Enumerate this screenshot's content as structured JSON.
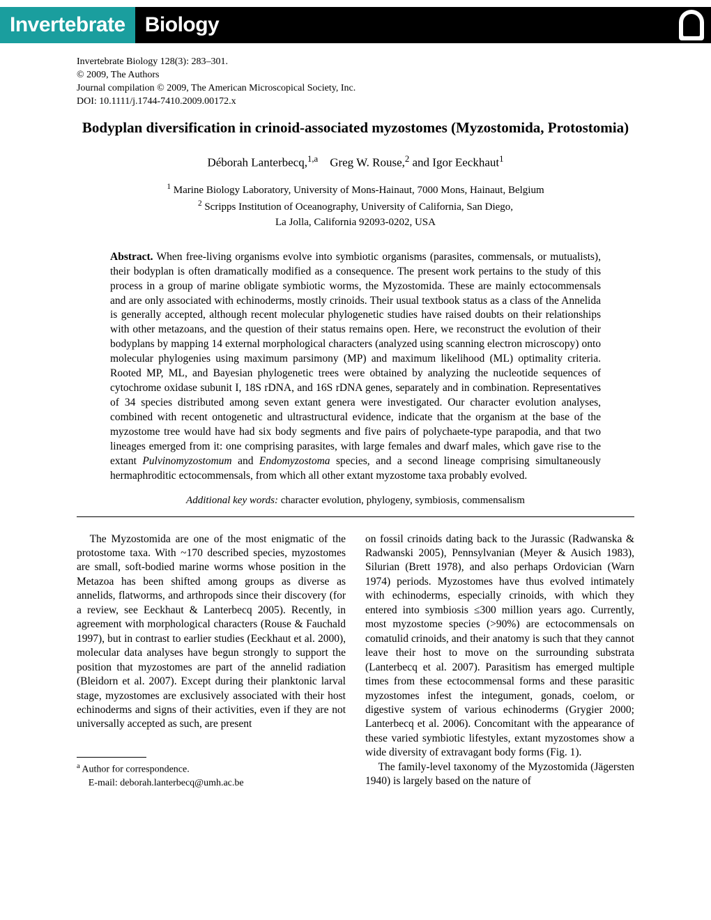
{
  "banner": {
    "word1": "Invertebrate",
    "word2": "Biology",
    "colors": {
      "teal": "#1a9e9e",
      "black": "#000000",
      "white": "#ffffff"
    }
  },
  "citation": {
    "line1": "Invertebrate Biology 128(3): 283–301.",
    "line2": "© 2009, The Authors",
    "line3": "Journal compilation © 2009, The American Microscopical Society, Inc.",
    "line4": "DOI: 10.1111/j.1744-7410.2009.00172.x"
  },
  "title": "Bodyplan diversification in crinoid-associated myzostomes (Myzostomida, Protostomia)",
  "authors_html": "Déborah Lanterbecq,<sup>1,a</sup> Greg W. Rouse,<sup>2</sup> and Igor Eeckhaut<sup>1</sup>",
  "affiliations": {
    "a1": "Marine Biology Laboratory, University of Mons-Hainaut, 7000 Mons, Hainaut, Belgium",
    "a2": "Scripps Institution of Oceanography, University of California, San Diego,",
    "a2b": "La Jolla, California 92093-0202, USA"
  },
  "abstract": {
    "label": "Abstract.",
    "text": "When free-living organisms evolve into symbiotic organisms (parasites, commensals, or mutualists), their bodyplan is often dramatically modified as a consequence. The present work pertains to the study of this process in a group of marine obligate symbiotic worms, the Myzostomida. These are mainly ectocommensals and are only associated with echinoderms, mostly crinoids. Their usual textbook status as a class of the Annelida is generally accepted, although recent molecular phylogenetic studies have raised doubts on their relationships with other metazoans, and the question of their status remains open. Here, we reconstruct the evolution of their bodyplans by mapping 14 external morphological characters (analyzed using scanning electron microscopy) onto molecular phylogenies using maximum parsimony (MP) and maximum likelihood (ML) optimality criteria. Rooted MP, ML, and Bayesian phylogenetic trees were obtained by analyzing the nucleotide sequences of cytochrome oxidase subunit I, 18S rDNA, and 16S rDNA genes, separately and in combination. Representatives of 34 species distributed among seven extant genera were investigated. Our character evolution analyses, combined with recent ontogenetic and ultrastructural evidence, indicate that the organism at the base of the myzostome tree would have had six body segments and five pairs of polychaete-type parapodia, and that two lineages emerged from it: one comprising parasites, with large females and dwarf males, which gave rise to the extant "
  },
  "abstract_italic1": "Pulvinomyzostomum",
  "abstract_mid": " and ",
  "abstract_italic2": "Endomyzostoma",
  "abstract_tail": " species, and a second lineage comprising simultaneously hermaphroditic ectocommensals, from which all other extant myzostome taxa probably evolved.",
  "keywords": {
    "label": "Additional key words:",
    "text": " character evolution, phylogeny, symbiosis, commensalism"
  },
  "body": {
    "col1_p1": "The Myzostomida are one of the most enigmatic of the protostome taxa. With ~170 described species, myzostomes are small, soft-bodied marine worms whose position in the Metazoa has been shifted among groups as diverse as annelids, flatworms, and arthropods since their discovery (for a review, see Eeckhaut & Lanterbecq 2005). Recently, in agreement with morphological characters (Rouse & Fauchald 1997), but in contrast to earlier studies (Eeckhaut et al. 2000), molecular data analyses have begun strongly to support the position that myzostomes are part of the annelid radiation (Bleidorn et al. 2007). Except during their planktonic larval stage, myzostomes are exclusively associated with their host echinoderms and signs of their activities, even if they are not universally accepted as such, are present",
    "col2_p1": "on fossil crinoids dating back to the Jurassic (Radwanska & Radwanski 2005), Pennsylvanian (Meyer & Ausich 1983), Silurian (Brett 1978), and also perhaps Ordovician (Warn 1974) periods. Myzostomes have thus evolved intimately with echinoderms, especially crinoids, with which they entered into symbiosis ≤300 million years ago. Currently, most myzostome species (>90%) are ectocommensals on comatulid crinoids, and their anatomy is such that they cannot leave their host to move on the surrounding substrata (Lanterbecq et al. 2007). Parasitism has emerged multiple times from these ectocommensal forms and these parasitic myzostomes infest the integument, gonads, coelom, or digestive system of various echinoderms (Grygier 2000; Lanterbecq et al. 2006). Concomitant with the appearance of these varied symbiotic lifestyles, extant myzostomes show a wide diversity of extravagant body forms (Fig. 1).",
    "col2_p2": "The family-level taxonomy of the Myzostomida (Jägersten 1940) is largely based on the nature of"
  },
  "footnote": {
    "line1_sup": "a",
    "line1": " Author for correspondence.",
    "line2": "E-mail: deborah.lanterbecq@umh.ac.be"
  }
}
